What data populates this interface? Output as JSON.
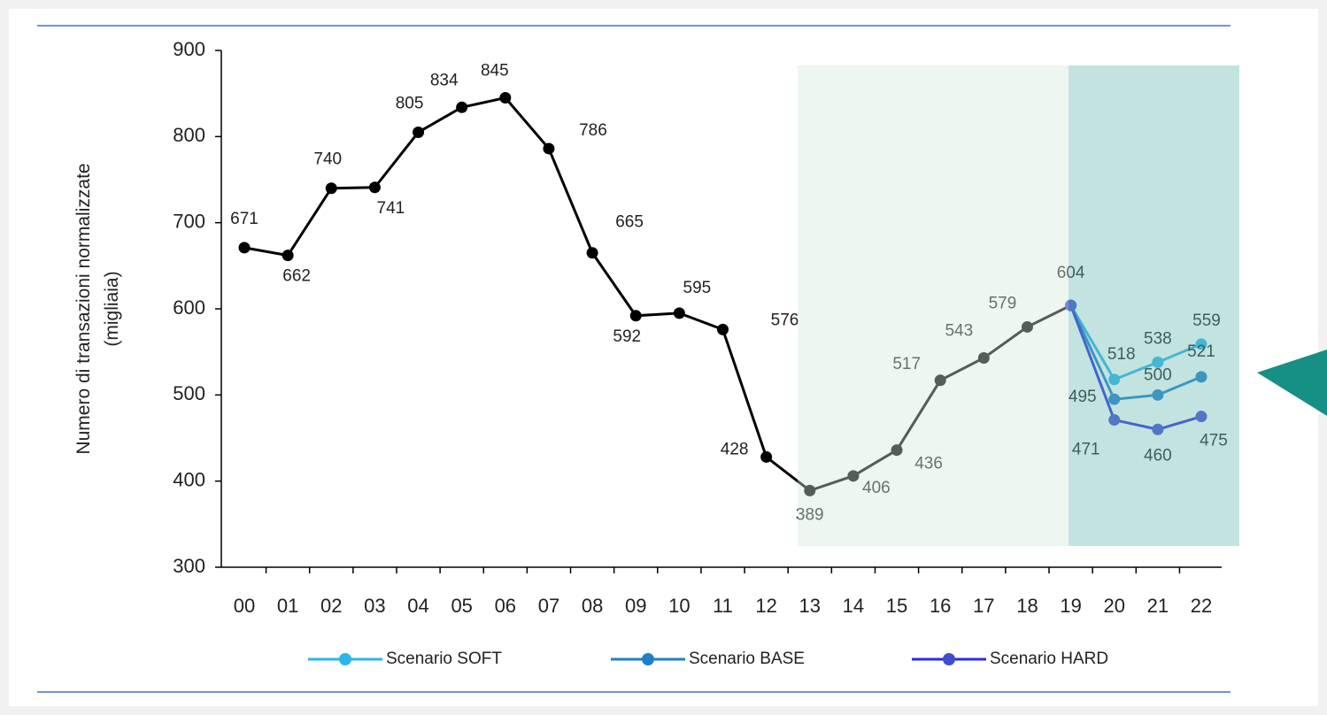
{
  "chart_data": {
    "type": "line",
    "ylabel": [
      "Numero di transazioni normalizzate",
      "(migliaia)"
    ],
    "categories": [
      "00",
      "01",
      "02",
      "03",
      "04",
      "05",
      "06",
      "07",
      "08",
      "09",
      "10",
      "11",
      "12",
      "13",
      "14",
      "15",
      "16",
      "17",
      "18",
      "19",
      "20",
      "21",
      "22"
    ],
    "series": [
      {
        "color": "#000000",
        "values": [
          671,
          662,
          740,
          741,
          805,
          834,
          845,
          786,
          665,
          592,
          595,
          576,
          428,
          389,
          406,
          436,
          517,
          543,
          579,
          604,
          null,
          null,
          null
        ]
      },
      {
        "name": "Scenario SOFT",
        "color": "#2bb6ea",
        "values": [
          null,
          null,
          null,
          null,
          null,
          null,
          null,
          null,
          null,
          null,
          null,
          null,
          null,
          null,
          null,
          null,
          null,
          null,
          null,
          604,
          518,
          538,
          559
        ]
      },
      {
        "name": "Scenario BASE",
        "color": "#1f7fc6",
        "values": [
          null,
          null,
          null,
          null,
          null,
          null,
          null,
          null,
          null,
          null,
          null,
          null,
          null,
          null,
          null,
          null,
          null,
          null,
          null,
          604,
          495,
          500,
          521
        ]
      },
      {
        "name": "Scenario HARD",
        "color": "#2a2ee0",
        "values": [
          null,
          null,
          null,
          null,
          null,
          null,
          null,
          null,
          null,
          null,
          null,
          null,
          null,
          null,
          null,
          null,
          null,
          null,
          null,
          604,
          471,
          460,
          475
        ]
      }
    ],
    "ylim": [
      300,
      900
    ],
    "yticks": [
      300,
      400,
      500,
      600,
      700,
      800,
      900
    ]
  }
}
